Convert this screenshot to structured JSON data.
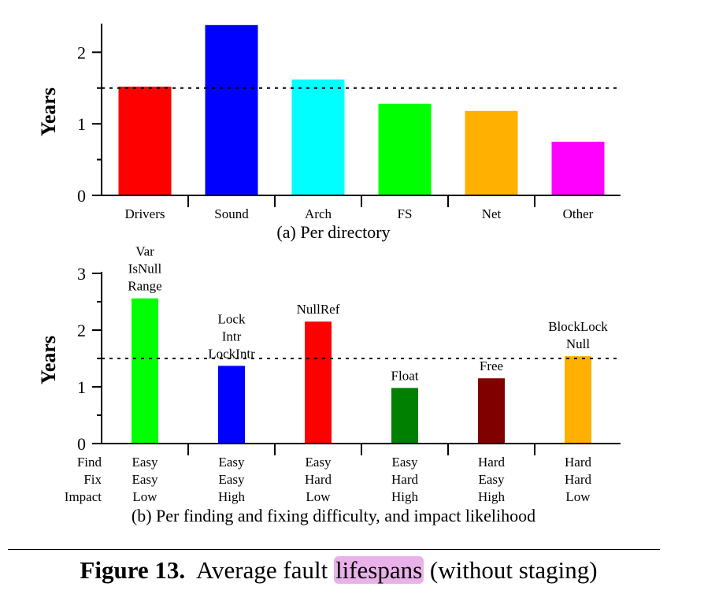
{
  "caption": {
    "figure_label": "Figure 13.",
    "text_before": "Average fault ",
    "highlight": "lifespans",
    "text_after": " (without staging)",
    "highlight_color": "#e8b2e8"
  },
  "chart_data": [
    {
      "type": "bar",
      "subcaption": "(a)  Per directory",
      "ylabel": "Years",
      "xlabel": "",
      "ylim": [
        0,
        2.4
      ],
      "yticks": [
        0,
        1,
        2
      ],
      "y_minor_step": 0.5,
      "reference_line": 1.5,
      "categories": [
        "Drivers",
        "Sound",
        "Arch",
        "FS",
        "Net",
        "Other"
      ],
      "values": [
        1.52,
        2.38,
        1.62,
        1.28,
        1.18,
        0.75
      ],
      "colors": [
        "#ff0000",
        "#0000ff",
        "#00ffff",
        "#00ff00",
        "#ffb000",
        "#ff00ff"
      ]
    },
    {
      "type": "bar",
      "subcaption": "(b)  Per finding and fixing difficulty, and impact likelihood",
      "ylabel": "Years",
      "xlabel": "",
      "ylim": [
        0,
        3
      ],
      "yticks": [
        0,
        1,
        2,
        3
      ],
      "y_minor_step": 0.5,
      "reference_line": 1.5,
      "row_labels": [
        "Find",
        "Fix",
        "Impact"
      ],
      "categories": [
        [
          "Easy",
          "Easy",
          "Low"
        ],
        [
          "Easy",
          "Easy",
          "High"
        ],
        [
          "Easy",
          "Hard",
          "Low"
        ],
        [
          "Easy",
          "Hard",
          "High"
        ],
        [
          "Hard",
          "Easy",
          "High"
        ],
        [
          "Hard",
          "Hard",
          "Low"
        ]
      ],
      "values": [
        2.56,
        1.37,
        2.15,
        0.98,
        1.15,
        1.54
      ],
      "colors": [
        "#00ff00",
        "#0000ff",
        "#ff0000",
        "#008000",
        "#800000",
        "#ffb000"
      ],
      "annotations": [
        [
          "Var",
          "IsNull",
          "Range"
        ],
        [
          "Lock",
          "Intr",
          "LockIntr"
        ],
        [
          "NullRef"
        ],
        [
          "Float"
        ],
        [
          "Free"
        ],
        [
          "BlockLock",
          "Null"
        ]
      ]
    }
  ]
}
